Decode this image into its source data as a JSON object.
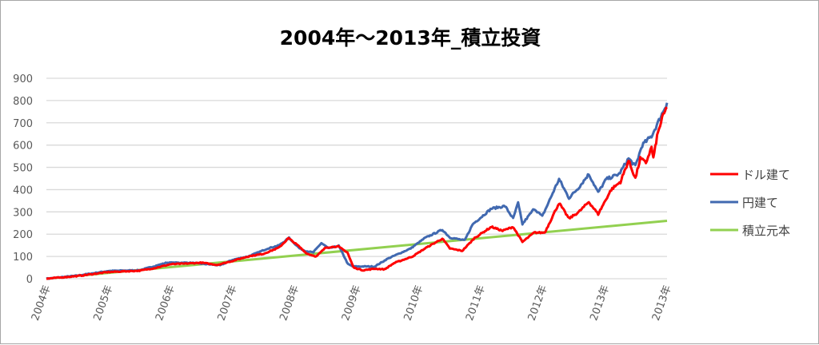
{
  "chart_data": {
    "type": "line",
    "title": "2004年～2013年_積立投資",
    "xlabel": "",
    "ylabel": "",
    "ylim": [
      0,
      900
    ],
    "yticks": [
      0,
      100,
      200,
      300,
      400,
      500,
      600,
      700,
      800,
      900
    ],
    "xlim": [
      2004,
      2014
    ],
    "xtick_labels": [
      "2004年",
      "2005年",
      "2006年",
      "2007年",
      "2008年",
      "2009年",
      "2010年",
      "2011年",
      "2012年",
      "2013年",
      "2013年"
    ],
    "grid": "horizontal",
    "legend": "right",
    "series": [
      {
        "name": "ドル建て",
        "color": "#ff0000",
        "points": [
          [
            2004.0,
            0
          ],
          [
            2004.5,
            12
          ],
          [
            2005.0,
            30
          ],
          [
            2005.5,
            36
          ],
          [
            2005.75,
            48
          ],
          [
            2006.0,
            65
          ],
          [
            2006.25,
            68
          ],
          [
            2006.5,
            72
          ],
          [
            2006.75,
            62
          ],
          [
            2007.0,
            80
          ],
          [
            2007.25,
            100
          ],
          [
            2007.5,
            112
          ],
          [
            2007.75,
            140
          ],
          [
            2007.9,
            182
          ],
          [
            2008.05,
            150
          ],
          [
            2008.2,
            112
          ],
          [
            2008.35,
            100
          ],
          [
            2008.5,
            140
          ],
          [
            2008.7,
            145
          ],
          [
            2008.85,
            118
          ],
          [
            2008.95,
            50
          ],
          [
            2009.1,
            38
          ],
          [
            2009.3,
            45
          ],
          [
            2009.45,
            42
          ],
          [
            2009.6,
            70
          ],
          [
            2009.9,
            100
          ],
          [
            2010.1,
            136
          ],
          [
            2010.38,
            180
          ],
          [
            2010.5,
            136
          ],
          [
            2010.7,
            125
          ],
          [
            2010.9,
            183
          ],
          [
            2011.17,
            233
          ],
          [
            2011.35,
            215
          ],
          [
            2011.52,
            233
          ],
          [
            2011.67,
            165
          ],
          [
            2011.86,
            207
          ],
          [
            2012.03,
            207
          ],
          [
            2012.26,
            340
          ],
          [
            2012.42,
            270
          ],
          [
            2012.58,
            300
          ],
          [
            2012.74,
            345
          ],
          [
            2012.89,
            290
          ],
          [
            2013.1,
            400
          ],
          [
            2013.25,
            435
          ],
          [
            2013.38,
            530
          ],
          [
            2013.49,
            450
          ],
          [
            2013.57,
            540
          ],
          [
            2013.66,
            520
          ],
          [
            2013.75,
            590
          ],
          [
            2013.78,
            540
          ],
          [
            2013.84,
            640
          ],
          [
            2013.92,
            720
          ],
          [
            2014.0,
            770
          ]
        ]
      },
      {
        "name": "円建て",
        "color": "#4169b0",
        "points": [
          [
            2004.0,
            0
          ],
          [
            2004.5,
            14
          ],
          [
            2005.0,
            35
          ],
          [
            2005.5,
            38
          ],
          [
            2005.94,
            72
          ],
          [
            2006.3,
            72
          ],
          [
            2006.6,
            65
          ],
          [
            2006.8,
            60
          ],
          [
            2007.0,
            85
          ],
          [
            2007.25,
            100
          ],
          [
            2007.57,
            136
          ],
          [
            2007.75,
            150
          ],
          [
            2007.91,
            183
          ],
          [
            2008.08,
            136
          ],
          [
            2008.17,
            125
          ],
          [
            2008.3,
            118
          ],
          [
            2008.43,
            160
          ],
          [
            2008.55,
            136
          ],
          [
            2008.71,
            148
          ],
          [
            2008.86,
            65
          ],
          [
            2008.94,
            55
          ],
          [
            2009.29,
            55
          ],
          [
            2009.5,
            90
          ],
          [
            2009.87,
            136
          ],
          [
            2010.1,
            183
          ],
          [
            2010.38,
            220
          ],
          [
            2010.5,
            185
          ],
          [
            2010.74,
            172
          ],
          [
            2010.87,
            245
          ],
          [
            2011.17,
            315
          ],
          [
            2011.39,
            326
          ],
          [
            2011.52,
            270
          ],
          [
            2011.6,
            340
          ],
          [
            2011.67,
            245
          ],
          [
            2011.86,
            315
          ],
          [
            2011.99,
            280
          ],
          [
            2012.26,
            447
          ],
          [
            2012.42,
            362
          ],
          [
            2012.58,
            410
          ],
          [
            2012.74,
            470
          ],
          [
            2012.89,
            387
          ],
          [
            2013.02,
            447
          ],
          [
            2013.23,
            470
          ],
          [
            2013.38,
            540
          ],
          [
            2013.49,
            505
          ],
          [
            2013.6,
            600
          ],
          [
            2013.75,
            640
          ],
          [
            2013.87,
            710
          ],
          [
            2014.0,
            790
          ]
        ]
      },
      {
        "name": "積立元本",
        "color": "#92d050",
        "points": [
          [
            2004.0,
            0
          ],
          [
            2014.0,
            260
          ]
        ]
      }
    ]
  }
}
